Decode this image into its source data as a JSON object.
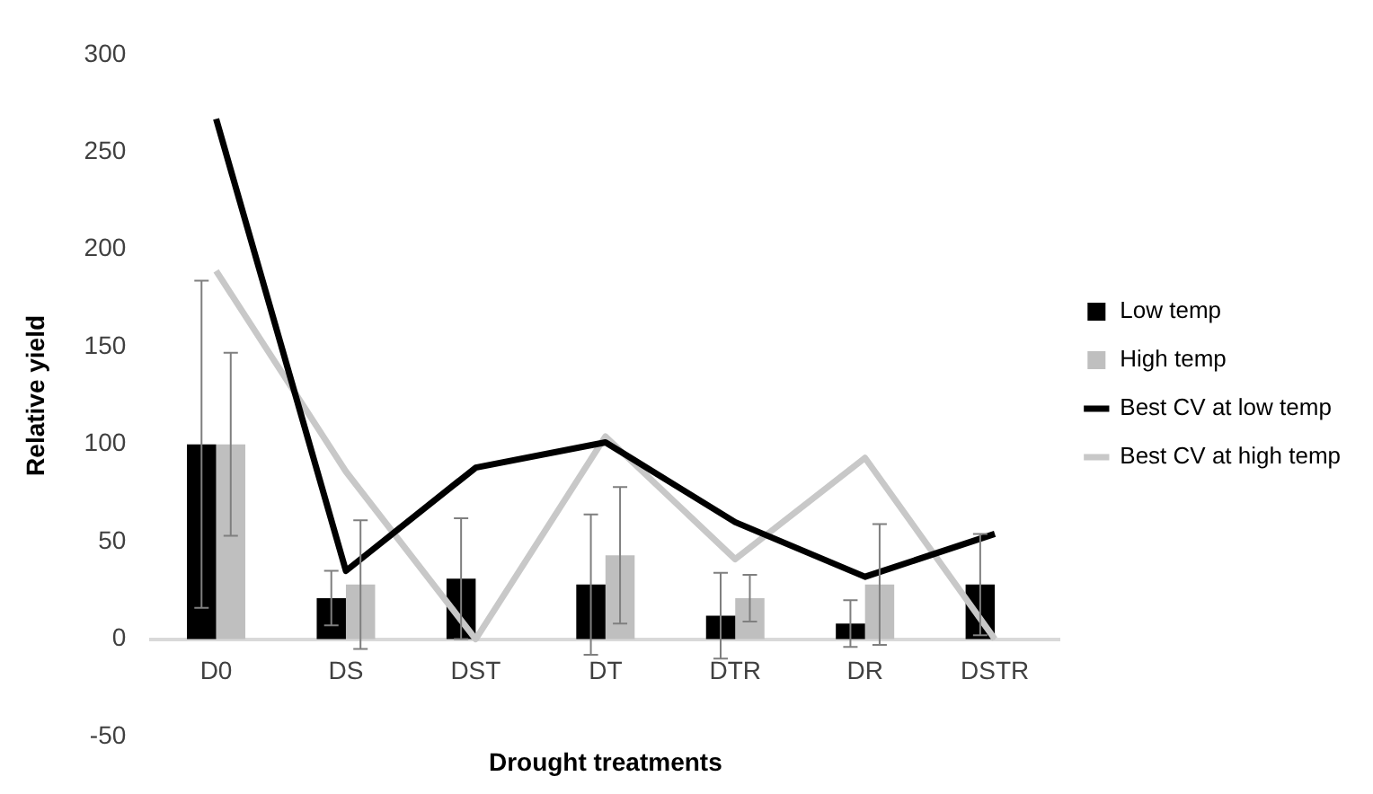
{
  "chart_data": {
    "type": "bar",
    "xlabel": "Drought treatments",
    "ylabel": "Relative yield",
    "categories": [
      "D0",
      "DS",
      "DST",
      "DT",
      "DTR",
      "DR",
      "DSTR"
    ],
    "series": [
      {
        "name": "Low temp",
        "color": "#000000",
        "values": [
          100,
          21,
          31,
          28,
          12,
          8,
          28
        ],
        "errors": [
          84,
          14,
          31,
          36,
          22,
          12,
          26
        ]
      },
      {
        "name": "High temp",
        "color": "#bfbfbf",
        "values": [
          100,
          28,
          null,
          43,
          21,
          28,
          null
        ],
        "errors": [
          47,
          33,
          null,
          35,
          12,
          31,
          null
        ]
      },
      {
        "name": "Best CV at low temp",
        "type": "line",
        "color": "#000000",
        "values": [
          267,
          35,
          88,
          101,
          60,
          32,
          54
        ]
      },
      {
        "name": "Best CV at high temp",
        "type": "line",
        "color": "#c8c8c8",
        "values": [
          189,
          86,
          0,
          104,
          41,
          93,
          0
        ]
      }
    ],
    "ylim": [
      -50,
      300
    ],
    "yticks": [
      -50,
      0,
      50,
      100,
      150,
      200,
      250,
      300
    ],
    "grid": false,
    "legend": "right",
    "marker": "none",
    "line_style": "solid"
  }
}
